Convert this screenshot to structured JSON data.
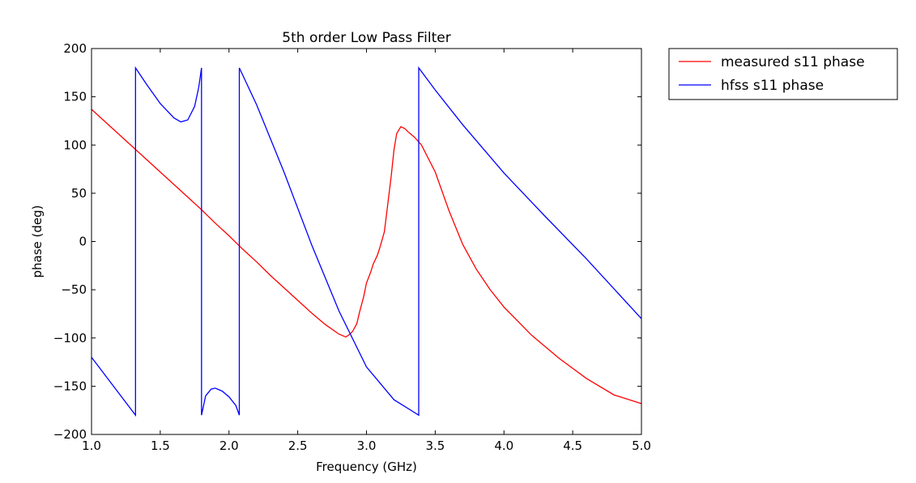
{
  "chart_data": {
    "type": "line",
    "title": "5th order Low Pass Filter",
    "xlabel": "Frequency (GHz)",
    "ylabel": "phase (deg)",
    "xlim": [
      1.0,
      5.0
    ],
    "ylim": [
      -200,
      200
    ],
    "xticks": [
      1.0,
      1.5,
      2.0,
      2.5,
      3.0,
      3.5,
      4.0,
      4.5,
      5.0
    ],
    "xtick_labels": [
      "1.0",
      "1.5",
      "2.0",
      "2.5",
      "3.0",
      "3.5",
      "4.0",
      "4.5",
      "5.0"
    ],
    "yticks": [
      -200,
      -150,
      -100,
      -50,
      0,
      50,
      100,
      150,
      200
    ],
    "ytick_labels": [
      "−200",
      "−150",
      "−100",
      "−50",
      "0",
      "50",
      "100",
      "150",
      "200"
    ],
    "grid": false,
    "legend_position": "outside-top-right",
    "series": [
      {
        "name": "measured s11 phase",
        "color": "#ff0000",
        "x": [
          1.0,
          1.1,
          1.2,
          1.3,
          1.4,
          1.5,
          1.6,
          1.7,
          1.8,
          1.9,
          2.0,
          2.1,
          2.2,
          2.3,
          2.4,
          2.5,
          2.6,
          2.7,
          2.8,
          2.85,
          2.88,
          2.9,
          2.93,
          2.95,
          2.98,
          3.0,
          3.03,
          3.05,
          3.08,
          3.1,
          3.13,
          3.15,
          3.18,
          3.2,
          3.22,
          3.25,
          3.28,
          3.3,
          3.35,
          3.4,
          3.5,
          3.6,
          3.7,
          3.8,
          3.9,
          4.0,
          4.2,
          4.4,
          4.6,
          4.8,
          5.0
        ],
        "y": [
          137,
          124,
          111,
          98,
          85,
          72,
          59,
          46,
          33,
          19,
          6,
          -8,
          -21,
          -35,
          -48,
          -61,
          -74,
          -86,
          -96,
          -99,
          -96,
          -93,
          -85,
          -73,
          -57,
          -43,
          -32,
          -23,
          -14,
          -5,
          10,
          33,
          68,
          95,
          112,
          119,
          117,
          114,
          108,
          100,
          72,
          32,
          -3,
          -29,
          -50,
          -68,
          -97,
          -121,
          -142,
          -159,
          -168
        ]
      },
      {
        "name": "hfss s11 phase",
        "color": "#0000ff",
        "x": [
          1.0,
          1.32,
          1.3201,
          1.4,
          1.5,
          1.6,
          1.65,
          1.7,
          1.75,
          1.78,
          1.8,
          1.8001,
          1.83,
          1.87,
          1.9,
          1.95,
          2.0,
          2.05,
          2.075,
          2.0751,
          2.2,
          2.4,
          2.6,
          2.8,
          3.0,
          3.2,
          3.38,
          3.3801,
          3.5,
          3.7,
          4.0,
          4.3,
          4.6,
          5.0
        ],
        "y": [
          -120,
          -180,
          180,
          163,
          143,
          128,
          124,
          126,
          140,
          160,
          180,
          -180,
          -160,
          -153,
          -152,
          -155,
          -161,
          -170,
          -180,
          180,
          142,
          72,
          -3,
          -72,
          -130,
          -164,
          -180,
          180,
          157,
          121,
          71,
          26,
          -18,
          -80
        ]
      }
    ]
  }
}
